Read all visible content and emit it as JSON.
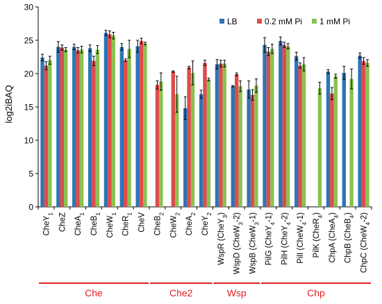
{
  "chart_data": {
    "type": "bar",
    "ylabel": "log2iBAQ",
    "ylim": [
      0,
      30
    ],
    "yticks": [
      0,
      5,
      10,
      15,
      20,
      25,
      30
    ],
    "grid": false,
    "legend_position": "top-right",
    "categories": [
      {
        "base": "CheY",
        "sub": "1",
        "suffix": ""
      },
      {
        "base": "CheZ",
        "sub": "",
        "suffix": ""
      },
      {
        "base": "CheA",
        "sub": "1",
        "suffix": ""
      },
      {
        "base": "CheB",
        "sub": "1",
        "suffix": ""
      },
      {
        "base": "CheW",
        "sub": "1",
        "suffix": ""
      },
      {
        "base": "CheR",
        "sub": "1",
        "suffix": ""
      },
      {
        "base": "CheV",
        "sub": "",
        "suffix": ""
      },
      {
        "base": "CheB",
        "sub": "2",
        "suffix": ""
      },
      {
        "base": "CheW",
        "sub": "2",
        "suffix": ""
      },
      {
        "base": "CheA",
        "sub": "2",
        "suffix": ""
      },
      {
        "base": "CheY",
        "sub": "2",
        "suffix": ""
      },
      {
        "base": "WspR (CheY",
        "sub": "3",
        "suffix": ")"
      },
      {
        "base": "WspD (CheW",
        "sub": "3",
        "suffix": "-2)"
      },
      {
        "base": "WspB (CheW",
        "sub": "3",
        "suffix": "-1)"
      },
      {
        "base": "PilG (CheY",
        "sub": "4",
        "suffix": "-1)"
      },
      {
        "base": "PilH (CheY",
        "sub": "4",
        "suffix": "-2)"
      },
      {
        "base": "PilI (CheW",
        "sub": "4",
        "suffix": "-1)"
      },
      {
        "base": "PilK (CheR",
        "sub": "4",
        "suffix": ")"
      },
      {
        "base": "ChpA (CheA",
        "sub": "4",
        "suffix": ")"
      },
      {
        "base": "ChpB (CheB",
        "sub": "4",
        "suffix": ")"
      },
      {
        "base": "ChpC (CheW",
        "sub": "4",
        "suffix": "-2)"
      }
    ],
    "series": [
      {
        "name": "LB",
        "color": "#2e75b6",
        "values": [
          22.4,
          24.0,
          24.0,
          23.8,
          26.1,
          24.0,
          24.1,
          null,
          null,
          14.8,
          16.9,
          21.4,
          18.1,
          17.6,
          24.3,
          24.9,
          22.6,
          null,
          20.3,
          20.1,
          22.7
        ],
        "errors": [
          0.5,
          0.8,
          0.4,
          0.5,
          0.4,
          0.5,
          0.9,
          null,
          null,
          1.7,
          0.6,
          0.7,
          0.1,
          1.3,
          1.1,
          0.6,
          0.6,
          null,
          0.3,
          1.0,
          0.4
        ]
      },
      {
        "name": "0.2 mM Pi",
        "color": "#e04b4b",
        "values": [
          21.2,
          23.9,
          23.5,
          21.9,
          25.9,
          22.0,
          24.9,
          18.3,
          20.3,
          20.9,
          21.6,
          21.5,
          19.9,
          16.8,
          23.3,
          24.3,
          21.2,
          null,
          17.0,
          null,
          21.9
        ],
        "errors": [
          0.6,
          0.4,
          0.4,
          0.7,
          0.5,
          0.2,
          0.4,
          0.6,
          0.1,
          0.2,
          0.4,
          0.5,
          0.2,
          0.8,
          0.6,
          0.4,
          0.4,
          null,
          0.9,
          null,
          0.5
        ]
      },
      {
        "name": "1 mM Pi",
        "color": "#8cc152",
        "values": [
          22.0,
          23.6,
          23.6,
          23.6,
          25.7,
          23.7,
          24.5,
          18.8,
          16.9,
          20.1,
          19.1,
          21.5,
          18.1,
          18.2,
          23.7,
          24.1,
          21.4,
          17.8,
          19.6,
          19.2,
          21.6
        ],
        "errors": [
          0.6,
          0.3,
          0.5,
          0.6,
          0.5,
          1.3,
          0.2,
          1.3,
          2.7,
          1.8,
          0.2,
          0.5,
          0.8,
          1.0,
          0.7,
          0.4,
          1.0,
          0.9,
          0.3,
          1.5,
          0.5
        ]
      }
    ],
    "groups": [
      {
        "label": "Che",
        "start": 0,
        "end": 6
      },
      {
        "label": "Che2",
        "start": 7,
        "end": 10
      },
      {
        "label": "Wsp",
        "start": 11,
        "end": 13
      },
      {
        "label": "Chp",
        "start": 14,
        "end": 20
      }
    ],
    "group_color": "#e02020"
  }
}
